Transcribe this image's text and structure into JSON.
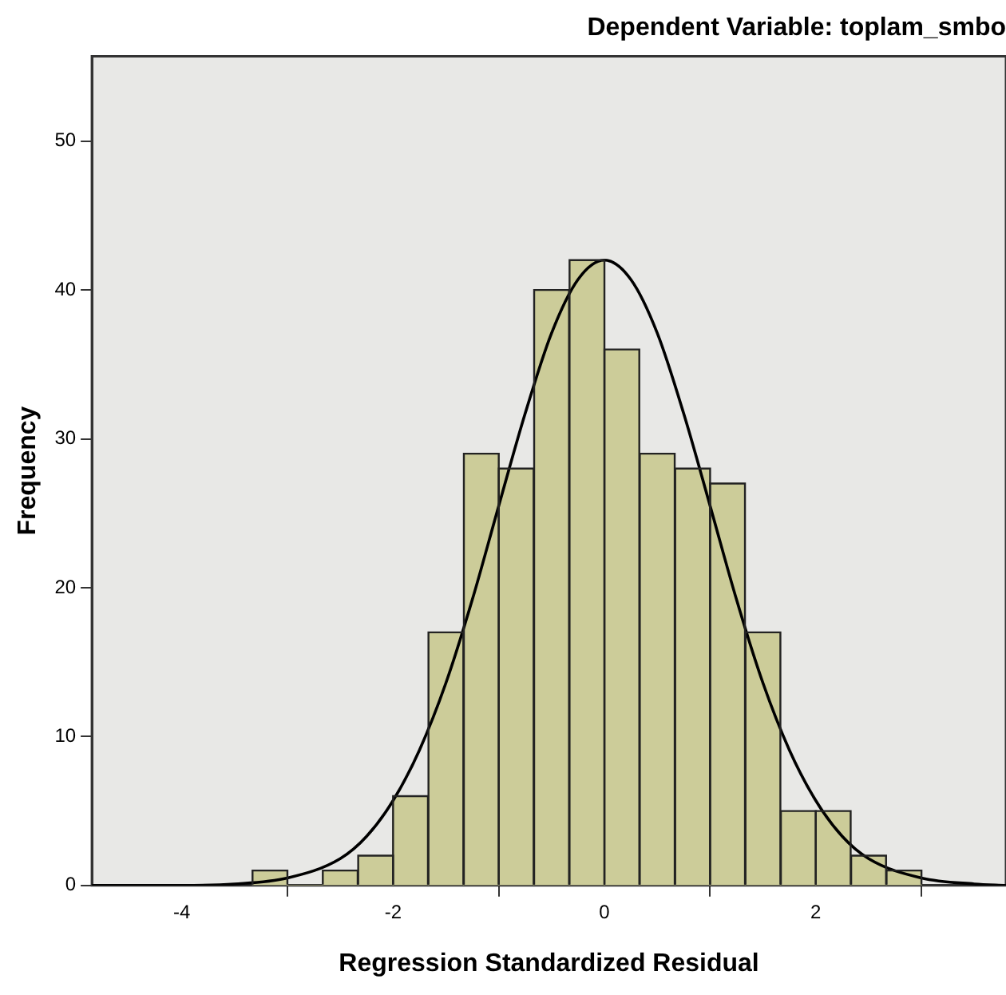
{
  "chart_data": {
    "type": "histogram",
    "title": "Dependent Variable: toplam_smbo",
    "xlabel": "Regression Standardized Residual",
    "ylabel": "Frequency",
    "bins": [
      -3.33,
      -3,
      -2.67,
      -2.33,
      -2,
      -1.67,
      -1.33,
      -1,
      -0.67,
      -0.33,
      0,
      0.33,
      0.67,
      1,
      1.33,
      1.67,
      2,
      2.33,
      2.67,
      3
    ],
    "values": [
      1,
      0,
      1,
      2,
      6,
      17,
      29,
      28,
      40,
      42,
      36,
      29,
      28,
      27,
      17,
      5,
      5,
      2,
      1
    ],
    "color": "#cccc99",
    "series": [
      {
        "type": "line",
        "color": "#000000",
        "x": [
          -4.85,
          -4,
          -3.5,
          -3,
          -2.5,
          -2.25,
          -2,
          -1.75,
          -1.5,
          -1.25,
          -1,
          -0.75,
          -0.5,
          -0.25,
          0,
          0.25,
          0.5,
          0.75,
          1,
          1.25,
          1.5,
          1.75,
          2,
          2.25,
          2.5,
          3,
          3.5,
          3.8
        ],
        "values": [
          0,
          0,
          0.1,
          0.5,
          1.8,
          3.3,
          5.7,
          9.1,
          13.6,
          19.2,
          25.5,
          31.7,
          37.1,
          40.7,
          42,
          40.7,
          37.1,
          31.7,
          25.5,
          19.2,
          13.6,
          9.1,
          5.7,
          3.3,
          1.8,
          0.5,
          0.1,
          0
        ]
      }
    ],
    "xlim": [
      -4.85,
      3.8
    ],
    "xticks": [
      -4,
      -2,
      0,
      2
    ],
    "ylim": [
      0,
      55.7
    ],
    "yticks": [
      0,
      10,
      20,
      30,
      40,
      50
    ],
    "grid": false,
    "legend": false,
    "marker": "none",
    "line_style": "solid"
  }
}
